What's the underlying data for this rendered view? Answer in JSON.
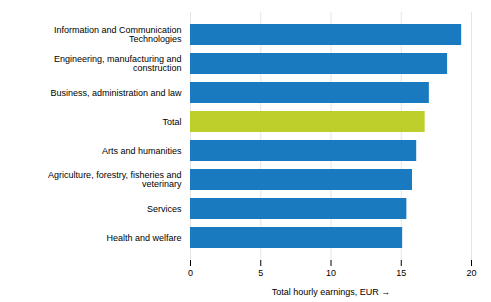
{
  "chart_data": {
    "type": "bar",
    "orientation": "horizontal",
    "categories": [
      "Health and welfare",
      "Services",
      "Agriculture, forestry, fisheries and\nveterinary",
      "Arts and humanities",
      "Total",
      "Business, administration and law",
      "Engineering, manufacturing and\nconstruction",
      "Information and Communication\nTechnologies"
    ],
    "values": [
      15.1,
      15.4,
      15.8,
      16.1,
      16.7,
      17.0,
      18.3,
      19.3
    ],
    "colors": [
      "#1a7abf",
      "#1a7abf",
      "#1a7abf",
      "#1a7abf",
      "#bccf2a",
      "#1a7abf",
      "#1a7abf",
      "#1a7abf"
    ],
    "xlabel": "Total hourly earnings, EUR",
    "xlim": [
      0,
      20
    ],
    "xticks": [
      0,
      5,
      10,
      15,
      20
    ],
    "grid": true
  }
}
